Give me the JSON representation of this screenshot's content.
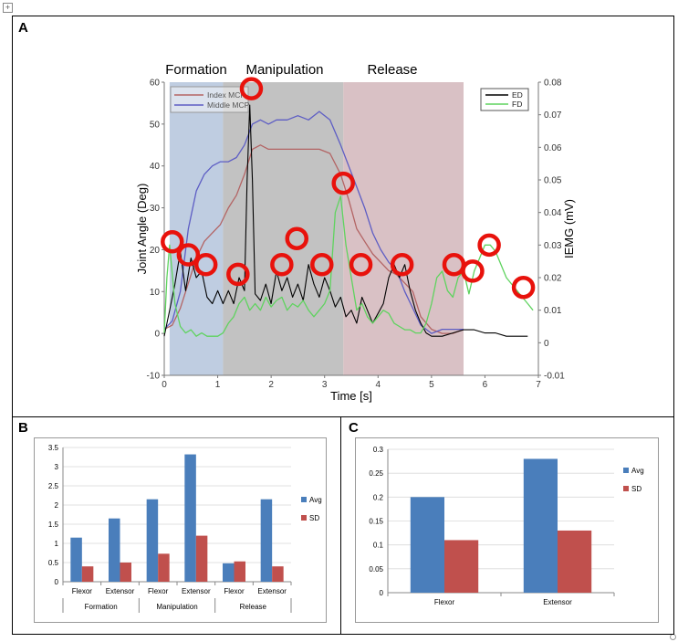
{
  "panel_labels": {
    "a": "A",
    "b": "B",
    "c": "C"
  },
  "handle_glyph": "+",
  "chart_data": [
    {
      "id": "A",
      "type": "line",
      "phases": [
        {
          "label": "Formation",
          "x0": 0.1,
          "x1": 1.1,
          "color": "#b4c4dc"
        },
        {
          "label": "Manipulation",
          "x0": 1.1,
          "x1": 3.35,
          "color": "#b7b7b7"
        },
        {
          "label": "Release",
          "x0": 3.35,
          "x1": 5.6,
          "color": "#d2b6bb"
        }
      ],
      "xlabel": "Time [s]",
      "ylabel": "Joint Angle (Deg)",
      "y2label": "IEMG (mV)",
      "xlim": [
        0,
        7
      ],
      "ylim": [
        -10,
        60
      ],
      "y2lim": [
        -0.01,
        0.08
      ],
      "xticks": [
        "0",
        "1",
        "2",
        "3",
        "4",
        "5",
        "6",
        "7"
      ],
      "yticks": [
        "-10",
        "0",
        "10",
        "20",
        "30",
        "40",
        "50",
        "60"
      ],
      "y2ticks": [
        "-0.01",
        "0",
        "0.01",
        "0.02",
        "0.03",
        "0.04",
        "0.05",
        "0.06",
        "0.07",
        "0.08"
      ],
      "legend_left": [
        {
          "name": "Index MCP",
          "color": "#b36464"
        },
        {
          "name": "Middle MCP",
          "color": "#5d5dc4"
        }
      ],
      "legend_right": [
        {
          "name": "ED",
          "color": "#000000"
        },
        {
          "name": "FD",
          "color": "#5fd35f"
        }
      ],
      "series": [
        {
          "name": "Index MCP",
          "axis": "left",
          "color": "#b36464",
          "x": [
            0,
            0.15,
            0.3,
            0.45,
            0.6,
            0.75,
            0.9,
            1.05,
            1.2,
            1.35,
            1.5,
            1.65,
            1.8,
            1.95,
            2.1,
            2.3,
            2.5,
            2.7,
            2.9,
            3.1,
            3.3,
            3.45,
            3.6,
            3.75,
            3.9,
            4.05,
            4.2,
            4.35,
            4.5,
            4.65,
            4.8,
            5.0,
            5.2,
            5.4,
            5.6
          ],
          "y": [
            1,
            2,
            6,
            12,
            18,
            22,
            24,
            26,
            30,
            33,
            38,
            44,
            45,
            44,
            44,
            44,
            44,
            44,
            44,
            43,
            38,
            32,
            25,
            22,
            19,
            17,
            15,
            14,
            12,
            10,
            4,
            1,
            0,
            0,
            1
          ]
        },
        {
          "name": "Middle MCP",
          "axis": "left",
          "color": "#5d5dc4",
          "x": [
            0,
            0.15,
            0.3,
            0.45,
            0.6,
            0.75,
            0.9,
            1.05,
            1.2,
            1.35,
            1.5,
            1.65,
            1.8,
            1.95,
            2.1,
            2.3,
            2.5,
            2.7,
            2.9,
            3.1,
            3.3,
            3.45,
            3.6,
            3.75,
            3.9,
            4.05,
            4.2,
            4.35,
            4.5,
            4.65,
            4.8,
            5.0,
            5.2,
            5.4,
            5.6
          ],
          "y": [
            1,
            3,
            10,
            25,
            34,
            38,
            40,
            41,
            41,
            42,
            45,
            50,
            51,
            50,
            51,
            51,
            52,
            51,
            53,
            51,
            45,
            40,
            35,
            30,
            24,
            20,
            17,
            15,
            10,
            6,
            2,
            0,
            1,
            1,
            1
          ]
        },
        {
          "name": "ED",
          "axis": "right",
          "color": "#000000",
          "x": [
            0,
            0.1,
            0.2,
            0.3,
            0.4,
            0.5,
            0.6,
            0.7,
            0.8,
            0.9,
            1.0,
            1.1,
            1.2,
            1.3,
            1.4,
            1.5,
            1.55,
            1.6,
            1.65,
            1.7,
            1.8,
            1.9,
            2.0,
            2.1,
            2.2,
            2.3,
            2.4,
            2.5,
            2.6,
            2.7,
            2.8,
            2.9,
            3.0,
            3.1,
            3.2,
            3.3,
            3.4,
            3.5,
            3.6,
            3.7,
            3.8,
            3.9,
            4.0,
            4.1,
            4.2,
            4.3,
            4.4,
            4.5,
            4.6,
            4.7,
            4.8,
            4.9,
            5.0,
            5.2,
            5.4,
            5.6,
            5.8,
            6.0,
            6.2,
            6.4,
            6.6,
            6.8
          ],
          "y": [
            0.002,
            0.01,
            0.018,
            0.028,
            0.016,
            0.026,
            0.02,
            0.022,
            0.014,
            0.012,
            0.016,
            0.012,
            0.016,
            0.012,
            0.02,
            0.016,
            0.05,
            0.073,
            0.05,
            0.015,
            0.013,
            0.018,
            0.012,
            0.022,
            0.016,
            0.02,
            0.014,
            0.018,
            0.013,
            0.024,
            0.018,
            0.014,
            0.02,
            0.016,
            0.011,
            0.014,
            0.008,
            0.01,
            0.006,
            0.014,
            0.01,
            0.006,
            0.009,
            0.012,
            0.02,
            0.024,
            0.02,
            0.024,
            0.016,
            0.01,
            0.006,
            0.003,
            0.002,
            0.002,
            0.003,
            0.004,
            0.004,
            0.003,
            0.003,
            0.002,
            0.002,
            0.002
          ]
        },
        {
          "name": "FD",
          "axis": "right",
          "color": "#5fd35f",
          "x": [
            0,
            0.05,
            0.1,
            0.2,
            0.3,
            0.4,
            0.5,
            0.6,
            0.7,
            0.8,
            0.9,
            1.0,
            1.1,
            1.2,
            1.3,
            1.4,
            1.5,
            1.6,
            1.7,
            1.8,
            1.9,
            2.0,
            2.1,
            2.2,
            2.3,
            2.4,
            2.5,
            2.6,
            2.7,
            2.8,
            2.9,
            3.0,
            3.1,
            3.2,
            3.3,
            3.4,
            3.5,
            3.6,
            3.7,
            3.8,
            3.9,
            4.0,
            4.1,
            4.2,
            4.3,
            4.4,
            4.5,
            4.6,
            4.7,
            4.8,
            4.9,
            5.0,
            5.1,
            5.2,
            5.3,
            5.4,
            5.5,
            5.6,
            5.7,
            5.8,
            5.9,
            6.0,
            6.1,
            6.2,
            6.3,
            6.4,
            6.5,
            6.6,
            6.7,
            6.8,
            6.9
          ],
          "y": [
            0.003,
            0.02,
            0.03,
            0.012,
            0.005,
            0.003,
            0.004,
            0.002,
            0.003,
            0.002,
            0.002,
            0.002,
            0.003,
            0.006,
            0.008,
            0.012,
            0.014,
            0.01,
            0.012,
            0.01,
            0.014,
            0.011,
            0.013,
            0.014,
            0.01,
            0.012,
            0.011,
            0.013,
            0.01,
            0.008,
            0.01,
            0.012,
            0.016,
            0.04,
            0.045,
            0.03,
            0.02,
            0.01,
            0.012,
            0.008,
            0.006,
            0.008,
            0.01,
            0.009,
            0.006,
            0.005,
            0.004,
            0.004,
            0.003,
            0.003,
            0.006,
            0.012,
            0.02,
            0.022,
            0.016,
            0.014,
            0.02,
            0.022,
            0.015,
            0.022,
            0.026,
            0.03,
            0.03,
            0.028,
            0.024,
            0.02,
            0.018,
            0.016,
            0.014,
            0.012,
            0.01
          ]
        }
      ],
      "highlight_markers": [
        {
          "t": 0.15,
          "v": 0.031
        },
        {
          "t": 0.45,
          "v": 0.027
        },
        {
          "t": 0.78,
          "v": 0.024
        },
        {
          "t": 1.63,
          "v": 0.078
        },
        {
          "t": 1.38,
          "v": 0.021
        },
        {
          "t": 2.2,
          "v": 0.024
        },
        {
          "t": 2.48,
          "v": 0.032
        },
        {
          "t": 2.95,
          "v": 0.024
        },
        {
          "t": 3.35,
          "v": 0.049
        },
        {
          "t": 3.68,
          "v": 0.024
        },
        {
          "t": 4.45,
          "v": 0.024
        },
        {
          "t": 5.42,
          "v": 0.024
        },
        {
          "t": 5.77,
          "v": 0.022
        },
        {
          "t": 6.08,
          "v": 0.03
        },
        {
          "t": 6.72,
          "v": 0.017
        }
      ]
    },
    {
      "id": "B",
      "type": "bar",
      "groups": [
        "Formation",
        "Manipulation",
        "Release"
      ],
      "categories": [
        "Flexor",
        "Extensor",
        "Flexor",
        "Extensor",
        "Flexor",
        "Extensor"
      ],
      "series": [
        {
          "name": "Avg",
          "color": "#4a7ebb",
          "values": [
            1.15,
            1.65,
            2.15,
            3.32,
            0.48,
            2.15
          ]
        },
        {
          "name": "SD",
          "color": "#c0504d",
          "values": [
            0.4,
            0.5,
            0.73,
            1.2,
            0.53,
            0.4
          ]
        }
      ],
      "ylim": [
        0,
        3.5
      ],
      "yticks": [
        "0",
        "0.5",
        "1",
        "1.5",
        "2",
        "2.5",
        "3",
        "3.5"
      ]
    },
    {
      "id": "C",
      "type": "bar",
      "categories": [
        "Flexor",
        "Extensor"
      ],
      "series": [
        {
          "name": "Avg",
          "color": "#4a7ebb",
          "values": [
            0.2,
            0.28
          ]
        },
        {
          "name": "SD",
          "color": "#c0504d",
          "values": [
            0.11,
            0.13
          ]
        }
      ],
      "ylim": [
        0,
        0.3
      ],
      "yticks": [
        "0",
        "0.05",
        "0.1",
        "0.15",
        "0.2",
        "0.25",
        "0.3"
      ]
    }
  ]
}
